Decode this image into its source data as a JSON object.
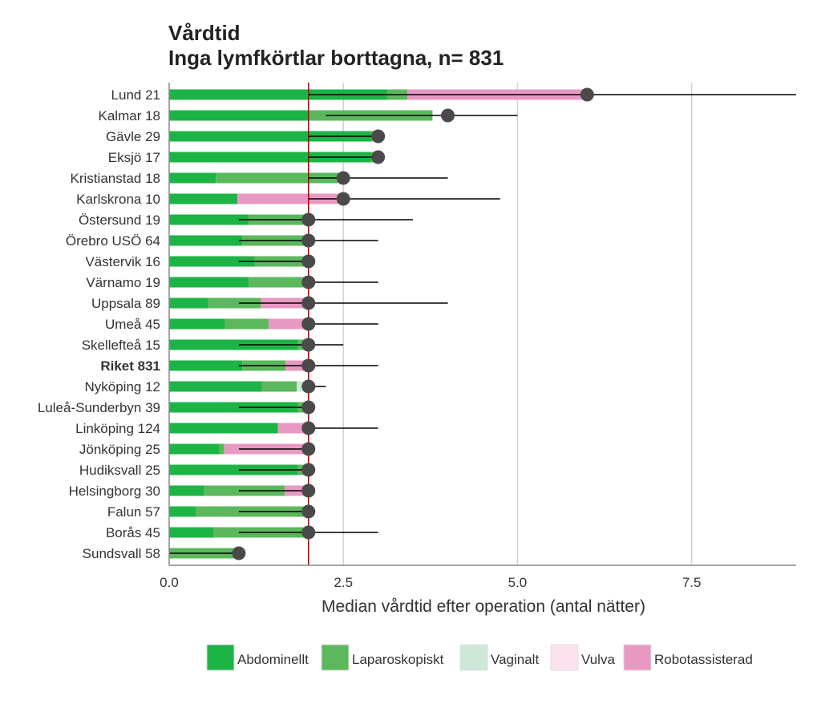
{
  "chart_data": {
    "type": "bar",
    "title": "Vårdtid",
    "subtitle": "Inga lymfkörtlar borttagna, n= 831",
    "xlabel": "Median vårdtid efter operation (antal nätter)",
    "ylabel": "",
    "xlim": [
      0,
      9
    ],
    "x_ticks": [
      0,
      2.5,
      5,
      7.5
    ],
    "x_tick_labels": [
      "0.0",
      "2.5",
      "5.0",
      "7.5"
    ],
    "reference_line": 2,
    "grid": "vertical",
    "legend_position": "bottom",
    "categories": [
      "Lund 21",
      "Kalmar 18",
      "Gävle 29",
      "Eksjö 17",
      "Kristianstad 18",
      "Karlskrona 10",
      "Östersund 19",
      "Örebro USÖ 64",
      "Västervik 16",
      "Värnamo 19",
      "Uppsala 89",
      "Umeå 45",
      "Skellefteå 15",
      "Riket 831",
      "Nyköping 12",
      "Luleå-Sunderbyn 39",
      "Linköping 124",
      "Jönköping 25",
      "Hudiksvall 25",
      "Helsingborg 30",
      "Falun 57",
      "Borås 45",
      "Sundsvall 58"
    ],
    "bold_category": "Riket 831",
    "series": [
      {
        "name": "Abdominellt",
        "color": "#1db446",
        "values": [
          3.13,
          2.0,
          2.9,
          2.9,
          0.67,
          0.98,
          1.14,
          1.05,
          1.23,
          1.14,
          0.56,
          0.8,
          1.85,
          1.05,
          1.33,
          1.85,
          1.56,
          0.72,
          1.85,
          0.5,
          0.38,
          0.64,
          0.0
        ]
      },
      {
        "name": "Laparoskopiskt",
        "color": "#5cb85c",
        "values": [
          0.29,
          1.78,
          0.1,
          0.1,
          1.76,
          0.0,
          0.86,
          0.95,
          0.77,
          0.86,
          0.76,
          0.63,
          0.15,
          0.62,
          0.5,
          0.15,
          0.0,
          0.07,
          0.15,
          1.16,
          1.62,
          1.36,
          1.0
        ]
      },
      {
        "name": "Vaginalt",
        "color": "#cde8d6",
        "values": [
          0,
          0,
          0,
          0,
          0,
          0,
          0,
          0,
          0,
          0,
          0,
          0,
          0,
          0,
          0.17,
          0,
          0,
          0,
          0,
          0,
          0,
          0,
          0
        ]
      },
      {
        "name": "Vulva",
        "color": "#fce1ee",
        "values": [
          0,
          0,
          0,
          0,
          0,
          0,
          0,
          0,
          0,
          0,
          0,
          0,
          0,
          0,
          0,
          0,
          0,
          0,
          0,
          0,
          0,
          0,
          0
        ]
      },
      {
        "name": "Robotassisterad",
        "color": "#e899c3",
        "values": [
          2.58,
          0.0,
          0.0,
          0.0,
          0.07,
          1.52,
          0.0,
          0.0,
          0.0,
          0.0,
          0.68,
          0.57,
          0.0,
          0.33,
          0.0,
          0.0,
          0.44,
          1.21,
          0.0,
          0.34,
          0.0,
          0.0,
          0.0
        ]
      }
    ],
    "median": [
      6,
      4,
      3,
      3,
      2.5,
      2.5,
      2,
      2,
      2,
      2,
      2,
      2,
      2,
      2,
      2,
      2,
      2,
      2,
      2,
      2,
      2,
      2,
      1
    ],
    "interval_low": [
      2,
      2.25,
      2,
      2,
      2,
      2,
      1,
      1,
      1,
      2,
      1,
      2,
      1,
      1,
      2,
      1,
      2,
      1,
      1,
      1,
      1,
      1,
      0
    ],
    "interval_high": [
      9,
      5,
      3,
      3,
      4,
      4.75,
      3.5,
      3,
      2,
      3,
      4,
      3,
      2.5,
      3,
      2.25,
      2,
      3,
      2,
      2,
      2,
      2,
      3,
      1
    ]
  },
  "legend": {
    "items": [
      {
        "label": "Abdominellt",
        "color": "#1db446"
      },
      {
        "label": "Laparoskopiskt",
        "color": "#5cb85c"
      },
      {
        "label": "Vaginalt",
        "color": "#cde8d6"
      },
      {
        "label": "Vulva",
        "color": "#fce1ee"
      },
      {
        "label": "Robotassisterad",
        "color": "#e899c3"
      }
    ]
  },
  "colors": {
    "reference_line": "#cc0000",
    "grid": "#d3d3d3",
    "axis": "#888888",
    "median_marker": "#4a4a4a",
    "interval_line": "#000000"
  }
}
